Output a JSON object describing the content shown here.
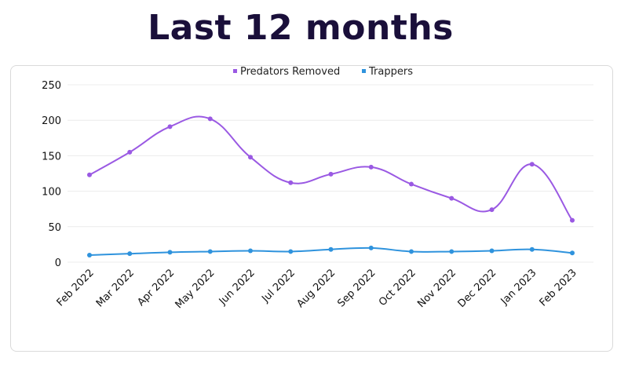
{
  "title": "Last 12 months",
  "colors": {
    "predators": "#9a59e3",
    "trappers": "#2f93dd",
    "grid": "#ececec",
    "title": "#1a0f3a"
  },
  "chart_data": {
    "type": "line",
    "title": "Last 12 months",
    "xlabel": "",
    "ylabel": "",
    "categories": [
      "Feb 2022",
      "Mar 2022",
      "Apr 2022",
      "May 2022",
      "Jun 2022",
      "Jul 2022",
      "Aug 2022",
      "Sep 2022",
      "Oct 2022",
      "Nov 2022",
      "Dec 2022",
      "Jan 2023",
      "Feb 2023"
    ],
    "series": [
      {
        "name": "Predators Removed",
        "values": [
          123,
          155,
          191,
          202,
          148,
          112,
          124,
          134,
          110,
          90,
          74,
          138,
          59
        ]
      },
      {
        "name": "Trappers",
        "values": [
          10,
          12,
          14,
          15,
          16,
          15,
          18,
          20,
          15,
          15,
          16,
          18,
          13
        ]
      }
    ],
    "ylim": [
      0,
      250
    ],
    "yticks": [
      0,
      50,
      100,
      150,
      200,
      250
    ],
    "grid": true,
    "curve": "smooth",
    "legend": "top-center"
  }
}
